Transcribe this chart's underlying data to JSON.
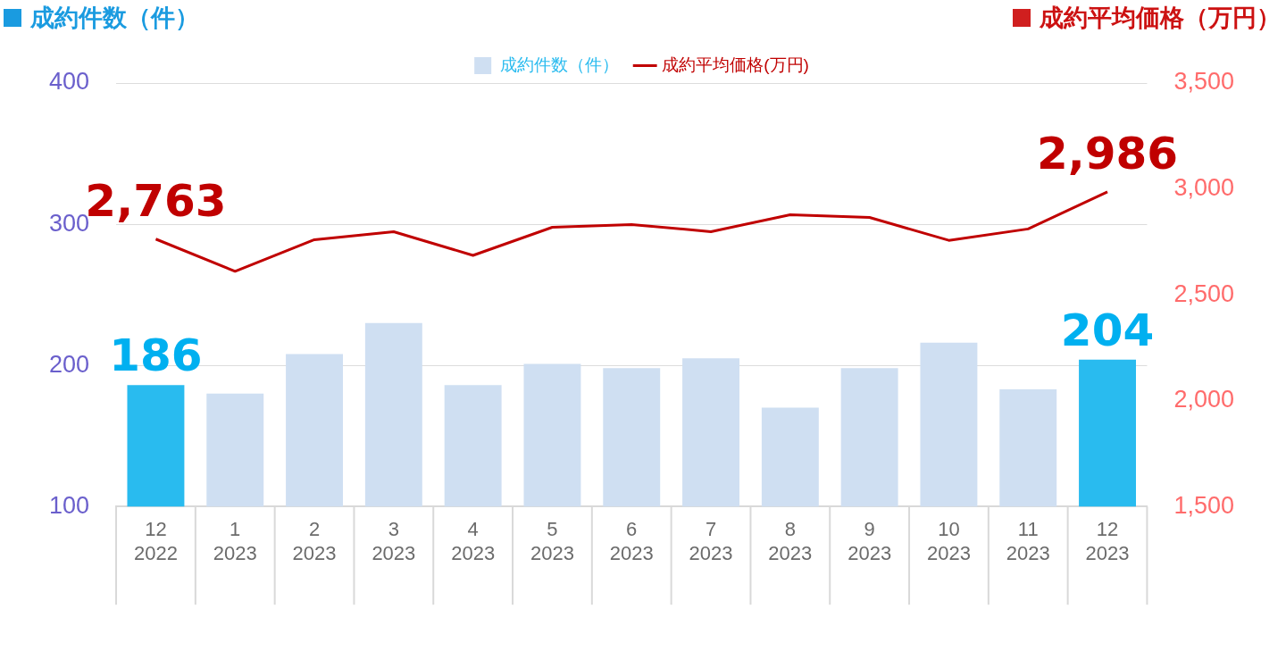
{
  "chart_data": {
    "type": "bar",
    "ylabel": "成約件数（件）",
    "y2label": "成約平均価格（万円）",
    "categories": [
      "12\n2022",
      "1\n2023",
      "2\n2023",
      "3\n2023",
      "4\n2023",
      "5\n2023",
      "6\n2023",
      "7\n2023",
      "8\n2023",
      "9\n2023",
      "10\n2023",
      "11\n2023",
      "12\n2023"
    ],
    "series": [
      {
        "name": "成約件数（件）",
        "color": "#cfdff2",
        "colors": [
          "#29bbef",
          "#cfdff2",
          "#cfdff2",
          "#cfdff2",
          "#cfdff2",
          "#cfdff2",
          "#cfdff2",
          "#cfdff2",
          "#cfdff2",
          "#cfdff2",
          "#cfdff2",
          "#cfdff2",
          "#29bbef"
        ],
        "values": [
          186,
          180,
          208,
          230,
          186,
          201,
          198,
          205,
          170,
          198,
          216,
          183,
          204
        ],
        "value_labels": [
          "186",
          null,
          null,
          null,
          null,
          null,
          null,
          null,
          null,
          null,
          null,
          null,
          "204"
        ]
      },
      {
        "name": "成約平均価格(万円)",
        "type": "line",
        "axis": "y2",
        "color": "#c00000",
        "values": [
          2763,
          2611,
          2760,
          2798,
          2686,
          2819,
          2832,
          2798,
          2878,
          2865,
          2757,
          2811,
          2986
        ],
        "value_labels": [
          "2,763",
          null,
          null,
          null,
          null,
          null,
          null,
          null,
          null,
          null,
          null,
          null,
          "2,986"
        ]
      }
    ],
    "ylim": [
      100,
      400
    ],
    "yticks": [
      100,
      200,
      300,
      400
    ],
    "y2lim": [
      1500,
      3500
    ],
    "y2ticks": [
      {
        "value": 1500,
        "label": "1,500"
      },
      {
        "value": 2000,
        "label": "2,000"
      },
      {
        "value": 2500,
        "label": "2,500"
      },
      {
        "value": 3000,
        "label": "3,000"
      },
      {
        "value": 3500,
        "label": "3,500"
      }
    ],
    "grid": "y",
    "legend": "top",
    "marker": "none"
  }
}
